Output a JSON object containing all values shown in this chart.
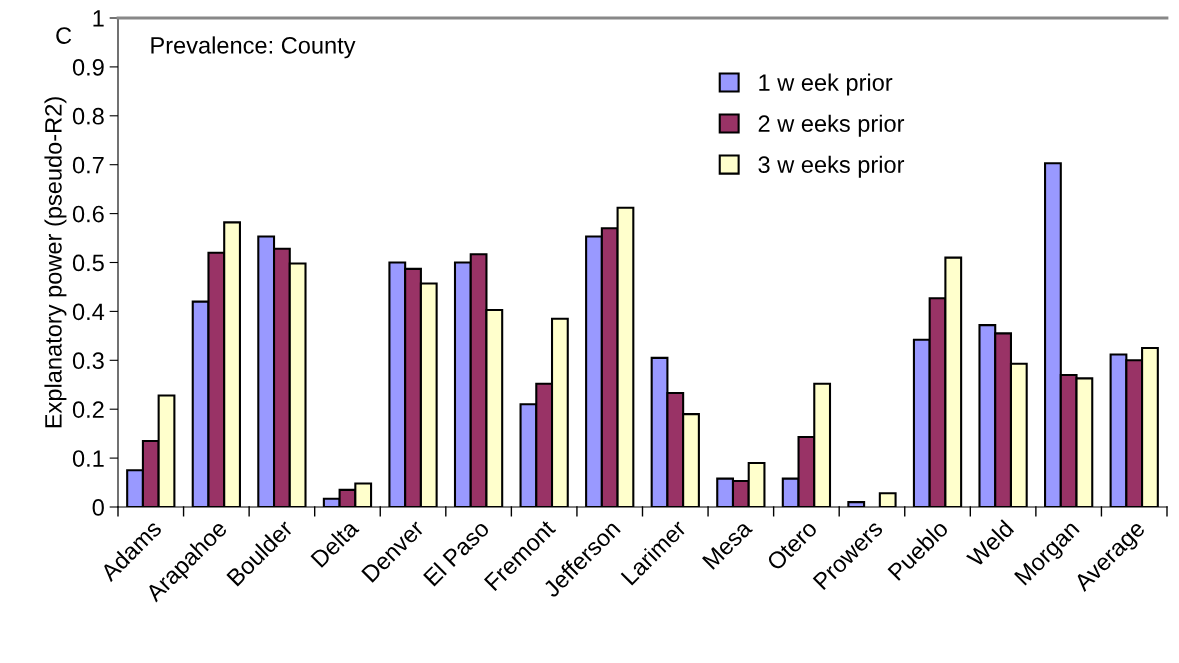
{
  "chart_data": {
    "type": "bar",
    "categories": [
      "Adams",
      "Arapahoe",
      "Boulder",
      "Delta",
      "Denver",
      "El Paso",
      "Fremont",
      "Jefferson",
      "Larimer",
      "Mesa",
      "Otero",
      "Prowers",
      "Pueblo",
      "Weld",
      "Morgan",
      "Average"
    ],
    "series": [
      {
        "name": "1 w eek prior",
        "color": "#9999ff",
        "values": [
          0.075,
          0.42,
          0.553,
          0.017,
          0.5,
          0.5,
          0.21,
          0.553,
          0.305,
          0.058,
          0.058,
          0.01,
          0.342,
          0.372,
          0.703,
          0.312
        ]
      },
      {
        "name": "2 w eeks prior",
        "color": "#993366",
        "values": [
          0.135,
          0.52,
          0.528,
          0.035,
          0.487,
          0.517,
          0.252,
          0.57,
          0.233,
          0.053,
          0.143,
          null,
          0.427,
          0.355,
          0.27,
          0.3
        ]
      },
      {
        "name": "3 w eeks prior",
        "color": "#ffffcc",
        "values": [
          0.228,
          0.582,
          0.498,
          0.048,
          0.457,
          0.403,
          0.385,
          0.612,
          0.19,
          0.09,
          0.252,
          0.028,
          0.51,
          0.293,
          0.263,
          0.325
        ]
      }
    ],
    "ylabel": "Explanatory power (pseudo-R2)",
    "ylim": [
      0,
      1
    ],
    "yticks": [
      0,
      0.1,
      0.2,
      0.3,
      0.4,
      0.5,
      0.6,
      0.7,
      0.8,
      0.9,
      1
    ],
    "annotations": [
      "C",
      "Prevalence: County"
    ],
    "legend": "top right",
    "grid": false
  }
}
